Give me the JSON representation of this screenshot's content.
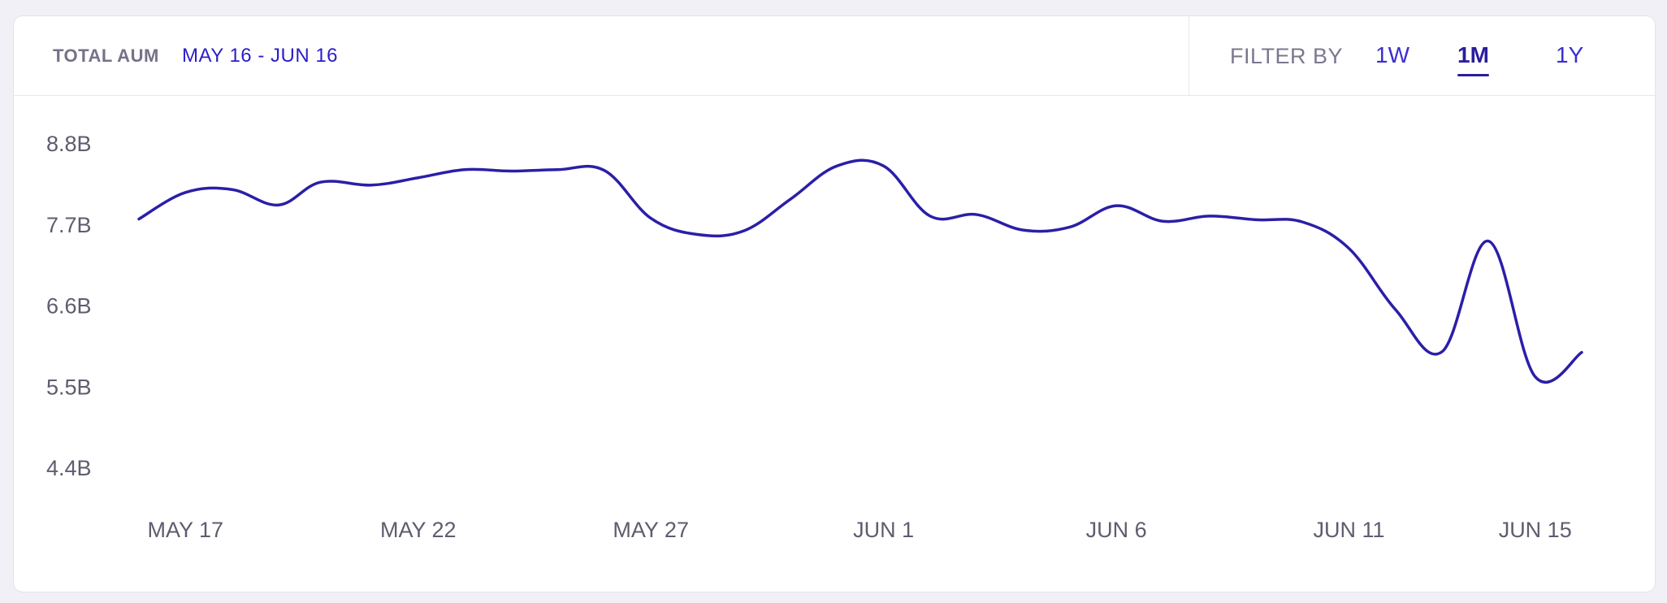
{
  "header": {
    "title": "TOTAL AUM",
    "date_range": "MAY 16 - JUN 16",
    "filter_label": "FILTER BY",
    "filters": [
      {
        "label": "1W",
        "active": false
      },
      {
        "label": "1M",
        "active": true
      },
      {
        "label": "1Y",
        "active": false
      }
    ]
  },
  "colors": {
    "accent": "#2b1ec8",
    "line": "#2a1fa8",
    "text_muted": "#74728a"
  },
  "chart_data": {
    "type": "line",
    "title": "",
    "xlabel": "",
    "ylabel": "",
    "ylim": [
      4.4,
      8.8
    ],
    "yticks": [
      "8.8B",
      "7.7B",
      "6.6B",
      "5.5B",
      "4.4B"
    ],
    "ytick_values": [
      8.8,
      7.7,
      6.6,
      5.5,
      4.4
    ],
    "xticks": [
      {
        "label": "MAY 17",
        "x": 1
      },
      {
        "label": "MAY 22",
        "x": 6
      },
      {
        "label": "MAY 27",
        "x": 11
      },
      {
        "label": "JUN 1",
        "x": 16
      },
      {
        "label": "JUN 6",
        "x": 21
      },
      {
        "label": "JUN 11",
        "x": 26
      },
      {
        "label": "JUN 15",
        "x": 30
      }
    ],
    "x_unit": "day index from May 16",
    "grid": false,
    "series": [
      {
        "values": [
          [
            0.0,
            7.78
          ],
          [
            1.0,
            8.14
          ],
          [
            2.0,
            8.18
          ],
          [
            3.0,
            7.97
          ],
          [
            3.9,
            8.28
          ],
          [
            5.0,
            8.24
          ],
          [
            6.0,
            8.34
          ],
          [
            7.0,
            8.45
          ],
          [
            8.0,
            8.43
          ],
          [
            9.0,
            8.45
          ],
          [
            10.0,
            8.44
          ],
          [
            11.0,
            7.79
          ],
          [
            12.0,
            7.57
          ],
          [
            13.0,
            7.62
          ],
          [
            14.0,
            8.05
          ],
          [
            15.0,
            8.5
          ],
          [
            16.0,
            8.5
          ],
          [
            17.0,
            7.82
          ],
          [
            18.0,
            7.84
          ],
          [
            19.0,
            7.63
          ],
          [
            20.0,
            7.67
          ],
          [
            21.0,
            7.96
          ],
          [
            22.0,
            7.75
          ],
          [
            23.0,
            7.82
          ],
          [
            24.0,
            7.77
          ],
          [
            25.0,
            7.74
          ],
          [
            26.0,
            7.38
          ],
          [
            27.0,
            6.55
          ],
          [
            28.0,
            5.98
          ],
          [
            29.0,
            7.48
          ],
          [
            30.0,
            5.64
          ],
          [
            31.0,
            5.97
          ]
        ]
      }
    ]
  }
}
